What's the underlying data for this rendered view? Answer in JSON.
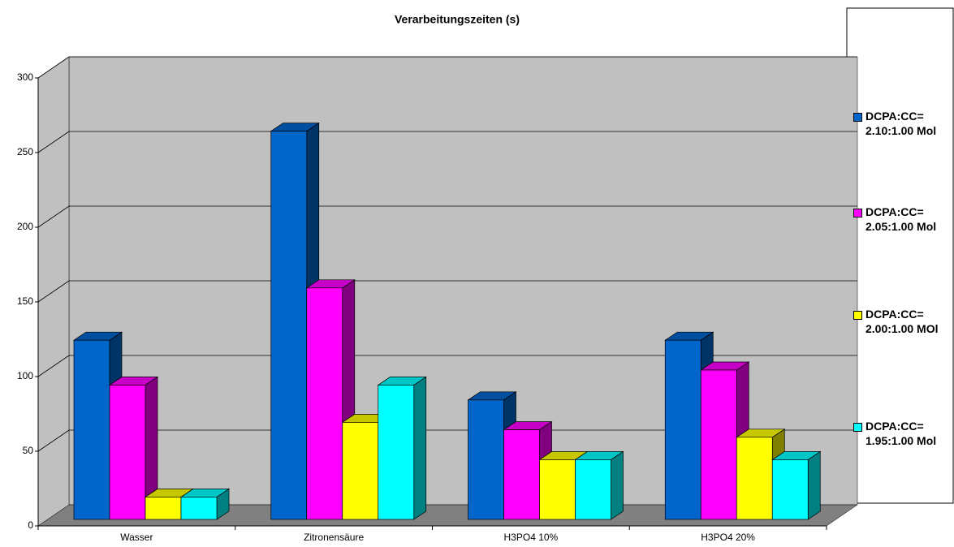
{
  "chart_data": {
    "type": "bar3d",
    "title": "Verarbeitungszeiten (s)",
    "categories": [
      "Wasser",
      "Zitronensäure",
      "H3PO4 10%",
      "H3PO4 20%"
    ],
    "series": [
      {
        "name": "DCPA:CC= 2.10:1.00 Mol",
        "color": "#0066cc",
        "values": [
          120,
          260,
          80,
          120
        ]
      },
      {
        "name": "DCPA:CC= 2.05:1.00 Mol",
        "color": "#ff00ff",
        "values": [
          90,
          155,
          60,
          100
        ]
      },
      {
        "name": "DCPA:CC= 2.00:1.00 MOl",
        "color": "#ffff00",
        "values": [
          15,
          65,
          40,
          55
        ]
      },
      {
        "name": "DCPA:CC= 1.95:1.00 Mol",
        "color": "#00ffff",
        "values": [
          15,
          90,
          40,
          40
        ]
      }
    ],
    "ylim": [
      0,
      300
    ],
    "yticks": [
      0,
      50,
      100,
      150,
      200,
      250,
      300
    ],
    "grid": true,
    "legend": "right"
  }
}
